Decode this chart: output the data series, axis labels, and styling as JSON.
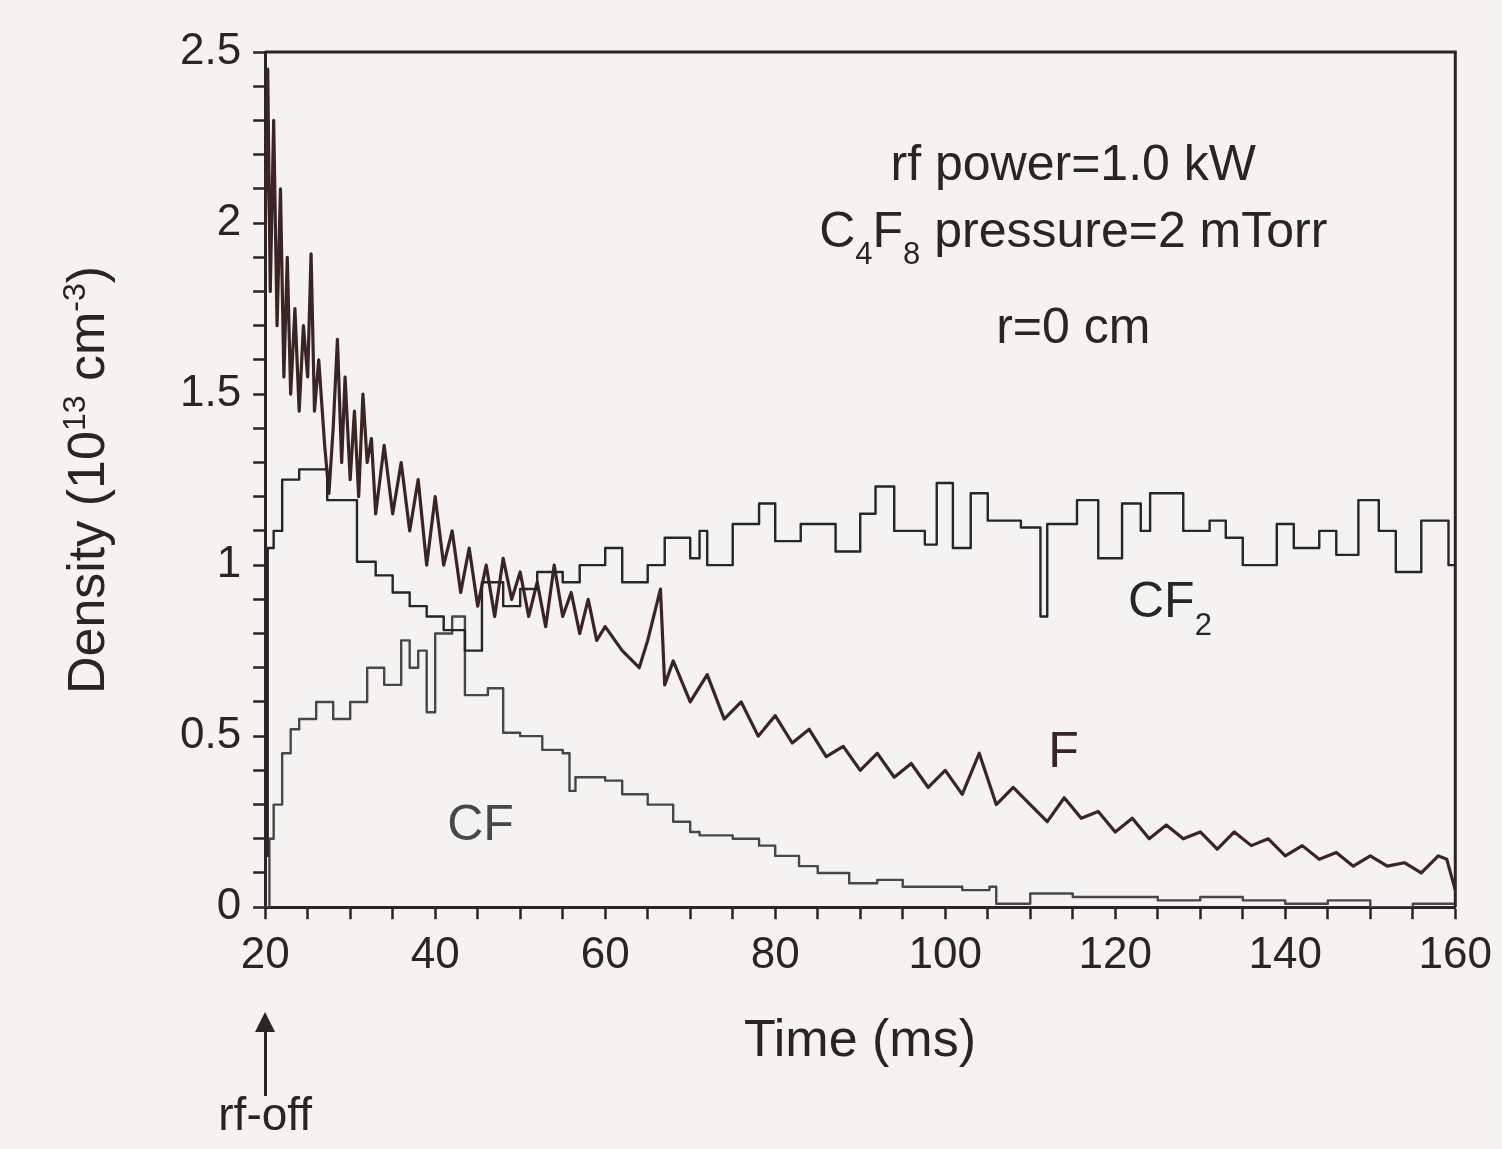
{
  "chart_data": {
    "type": "line",
    "xlabel": "Time (ms)",
    "ylabel": "Density (10$^{13}$ cm$^{-3}$)",
    "xlim": [
      20,
      160
    ],
    "ylim": [
      0,
      2.5
    ],
    "xticks": [
      20,
      {
        "value": 25,
        "label": null
      },
      {
        "value": 30,
        "label": null
      },
      {
        "value": 35,
        "label": null
      },
      40,
      {
        "value": 45,
        "label": null
      },
      {
        "value": 50,
        "label": null
      },
      {
        "value": 55,
        "label": null
      },
      60,
      {
        "value": 65,
        "label": null
      },
      {
        "value": 70,
        "label": null
      },
      {
        "value": 75,
        "label": null
      },
      80,
      {
        "value": 85,
        "label": null
      },
      {
        "value": 90,
        "label": null
      },
      {
        "value": 95,
        "label": null
      },
      100,
      {
        "value": 105,
        "label": null
      },
      {
        "value": 110,
        "label": null
      },
      {
        "value": 115,
        "label": null
      },
      120,
      {
        "value": 125,
        "label": null
      },
      {
        "value": 130,
        "label": null
      },
      {
        "value": 135,
        "label": null
      },
      140,
      {
        "value": 145,
        "label": null
      },
      {
        "value": 150,
        "label": null
      },
      {
        "value": 155,
        "label": null
      },
      160
    ],
    "yticks": [
      0,
      {
        "value": 0.1,
        "label": null
      },
      {
        "value": 0.2,
        "label": null
      },
      {
        "value": 0.3,
        "label": null
      },
      {
        "value": 0.4,
        "label": null
      },
      0.5,
      {
        "value": 0.6,
        "label": null
      },
      {
        "value": 0.7,
        "label": null
      },
      {
        "value": 0.8,
        "label": null
      },
      {
        "value": 0.9,
        "label": null
      },
      1,
      {
        "value": 1.1,
        "label": null
      },
      {
        "value": 1.2,
        "label": null
      },
      {
        "value": 1.3,
        "label": null
      },
      {
        "value": 1.4,
        "label": null
      },
      1.5,
      {
        "value": 1.6,
        "label": null
      },
      {
        "value": 1.7,
        "label": null
      },
      {
        "value": 1.8,
        "label": null
      },
      {
        "value": 1.9,
        "label": null
      },
      2,
      {
        "value": 2.1,
        "label": null
      },
      {
        "value": 2.2,
        "label": null
      },
      {
        "value": 2.3,
        "label": null
      },
      {
        "value": 2.4,
        "label": null
      },
      2.5
    ],
    "grid": false,
    "legend": false,
    "marker": "none",
    "line_style": "solid",
    "series": [
      {
        "name": "CF$_{2}$",
        "type": "step",
        "color": "#262626",
        "x": [
          20,
          20.3,
          21,
          22,
          24,
          27.3,
          30.8,
          33,
          35,
          37,
          39,
          41,
          43.5,
          45.5,
          48,
          50,
          52,
          55,
          57,
          60,
          62,
          65,
          67,
          70,
          71.1,
          72,
          75,
          78.1,
          80,
          83,
          87.1,
          90,
          91.8,
          94,
          97.6,
          99,
          100.9,
          103,
          105,
          108.9,
          111.2,
          112,
          115.5,
          118,
          120.8,
          123,
          124.1,
          128,
          131.1,
          133,
          135,
          139,
          141,
          144,
          146,
          148.6,
          151,
          153,
          156,
          159.2,
          160
        ],
        "values": [
          0.15,
          1.05,
          1.1,
          1.25,
          1.28,
          1.19,
          1.01,
          0.97,
          0.92,
          0.88,
          0.85,
          0.81,
          0.75,
          0.95,
          0.88,
          0.93,
          0.98,
          0.95,
          1.0,
          1.05,
          0.95,
          1.0,
          1.08,
          1.02,
          1.1,
          1.0,
          1.12,
          1.18,
          1.07,
          1.12,
          1.04,
          1.15,
          1.23,
          1.1,
          1.06,
          1.24,
          1.05,
          1.21,
          1.13,
          1.11,
          0.85,
          1.12,
          1.19,
          1.02,
          1.18,
          1.1,
          1.21,
          1.1,
          1.13,
          1.08,
          1.0,
          1.12,
          1.05,
          1.1,
          1.03,
          1.19,
          1.1,
          0.98,
          1.13,
          1.0,
          1.08
        ]
      },
      {
        "name": "F",
        "type": "line",
        "color": "#3b2424",
        "x": [
          20,
          20.3,
          20.6,
          21,
          21.4,
          21.8,
          22.2,
          22.6,
          23,
          23.5,
          24,
          24.5,
          25,
          25.4,
          25.8,
          26.3,
          27,
          27.5,
          28,
          28.5,
          29,
          29.4,
          30,
          30.5,
          31,
          31.5,
          32,
          32.5,
          33,
          34,
          35,
          36,
          37,
          38,
          39,
          40,
          41,
          42,
          43,
          44,
          45,
          46,
          47,
          48,
          49,
          50,
          51,
          52,
          53,
          54,
          55,
          56,
          57,
          58,
          59,
          60,
          62,
          64,
          65,
          66.5,
          67,
          68,
          70,
          72,
          74,
          76,
          78,
          80,
          82,
          84,
          86,
          88,
          90,
          92,
          94,
          96,
          98,
          100,
          102,
          104,
          106,
          108,
          110,
          112,
          114,
          116,
          118,
          120,
          122,
          124,
          126,
          128,
          130,
          132,
          134,
          136,
          138,
          140,
          142,
          144,
          146,
          148,
          150,
          152,
          154,
          156,
          158,
          159,
          160
        ],
        "values": [
          1.96,
          2.45,
          1.8,
          2.3,
          1.7,
          2.1,
          1.55,
          1.9,
          1.5,
          1.75,
          1.45,
          1.7,
          1.55,
          1.91,
          1.45,
          1.6,
          1.35,
          1.21,
          1.4,
          1.66,
          1.3,
          1.55,
          1.25,
          1.45,
          1.2,
          1.5,
          1.3,
          1.37,
          1.15,
          1.35,
          1.15,
          1.3,
          1.1,
          1.25,
          1.0,
          1.2,
          1.0,
          1.1,
          0.92,
          1.05,
          0.88,
          1.0,
          0.85,
          1.02,
          0.9,
          0.98,
          0.85,
          0.95,
          0.82,
          1.0,
          0.85,
          0.92,
          0.8,
          0.9,
          0.78,
          0.82,
          0.75,
          0.7,
          0.78,
          0.93,
          0.65,
          0.72,
          0.6,
          0.68,
          0.55,
          0.6,
          0.5,
          0.56,
          0.48,
          0.52,
          0.44,
          0.47,
          0.4,
          0.45,
          0.38,
          0.42,
          0.35,
          0.4,
          0.33,
          0.45,
          0.3,
          0.35,
          0.3,
          0.25,
          0.32,
          0.26,
          0.28,
          0.22,
          0.26,
          0.2,
          0.24,
          0.2,
          0.22,
          0.17,
          0.22,
          0.18,
          0.2,
          0.15,
          0.18,
          0.14,
          0.16,
          0.12,
          0.15,
          0.12,
          0.13,
          0.1,
          0.15,
          0.14,
          0.05
        ]
      },
      {
        "name": "CF",
        "type": "step",
        "color": "#474747",
        "x": [
          20,
          20.5,
          21,
          22,
          23,
          24,
          26,
          28,
          30,
          32,
          34,
          36,
          37,
          38,
          39,
          40,
          42,
          43.5,
          46.2,
          48,
          50,
          52.6,
          55,
          55.8,
          56.5,
          60,
          62,
          65,
          68,
          70,
          71.1,
          75,
          78.1,
          80,
          82.8,
          85,
          88.7,
          92,
          95,
          99.3,
          102,
          105.2,
          106,
          110,
          115,
          120,
          125,
          130,
          135,
          140,
          145,
          150,
          155,
          160
        ],
        "values": [
          0.0,
          0.2,
          0.3,
          0.45,
          0.52,
          0.55,
          0.6,
          0.55,
          0.6,
          0.7,
          0.65,
          0.78,
          0.7,
          0.75,
          0.57,
          0.8,
          0.85,
          0.62,
          0.64,
          0.51,
          0.5,
          0.46,
          0.45,
          0.34,
          0.38,
          0.37,
          0.33,
          0.3,
          0.25,
          0.22,
          0.21,
          0.2,
          0.18,
          0.15,
          0.12,
          0.1,
          0.07,
          0.08,
          0.06,
          0.06,
          0.05,
          0.06,
          0.01,
          0.04,
          0.03,
          0.03,
          0.02,
          0.03,
          0.02,
          0.01,
          0.02,
          0.0,
          0.01,
          0.02
        ]
      }
    ],
    "annotations": [
      "rf power=1.0 kW",
      "C$_{4}$F$_{8}$ pressure=2 mTorr",
      "r=0 cm",
      "rf-off"
    ]
  }
}
